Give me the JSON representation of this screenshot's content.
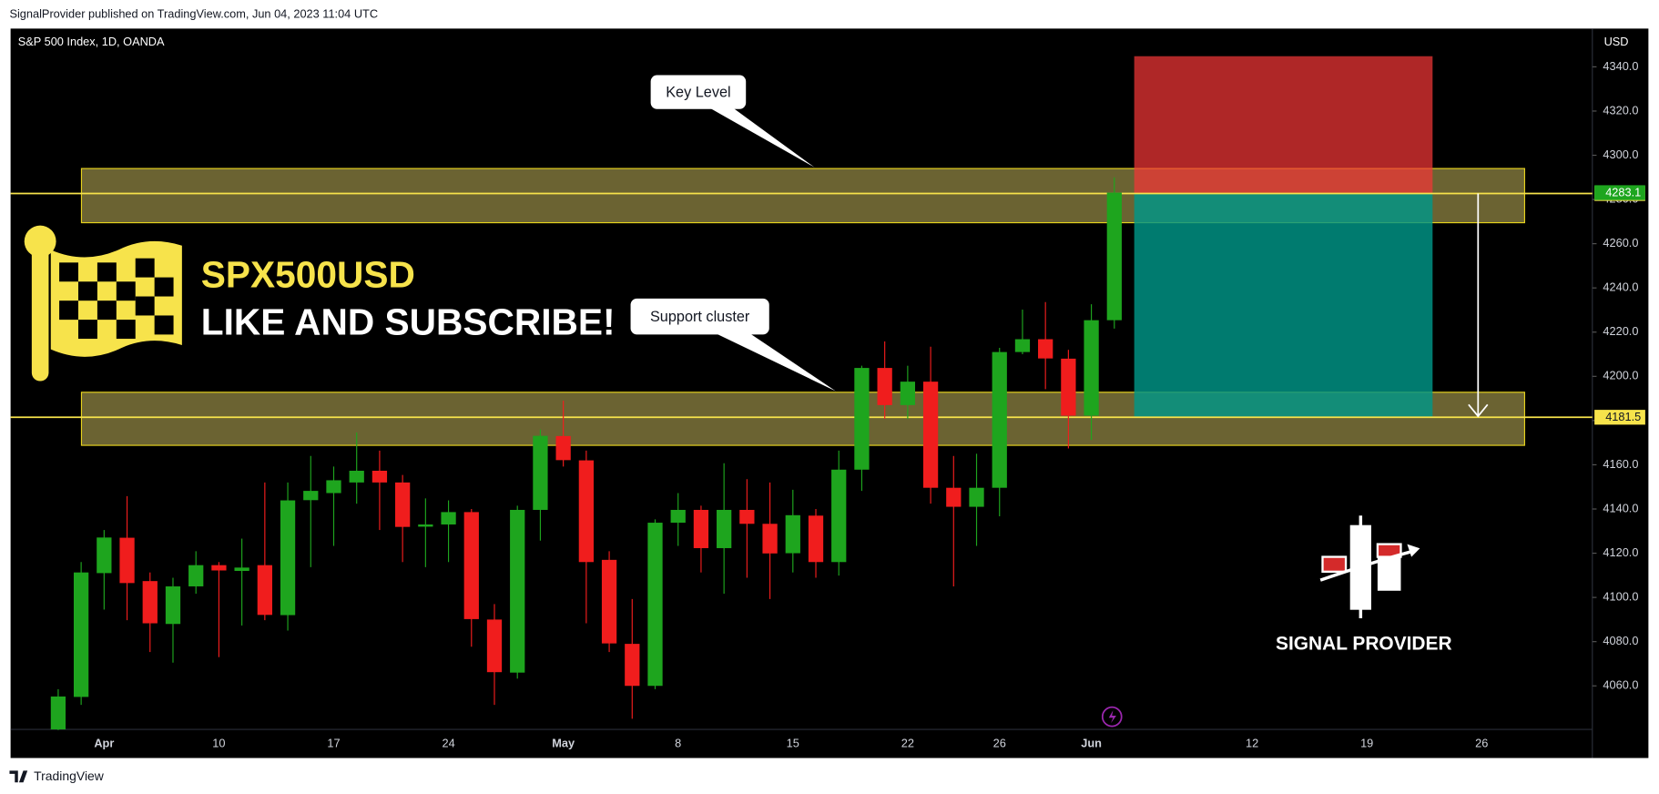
{
  "header": {
    "text": "SignalProvider published on TradingView.com, Jun 04, 2023 11:04 UTC"
  },
  "footer": {
    "text": "TradingView"
  },
  "banner": {
    "symbol": "SPX500USD",
    "slogan": "LIKE AND SUBSCRIBE!"
  },
  "logo": {
    "text": "SIGNAL PROVIDER"
  },
  "chart_data": {
    "type": "candlestick",
    "title": "S&P 500 Index, 1D, OANDA",
    "y_axis_label": "USD",
    "categories": [
      null,
      null,
      "Apr",
      null,
      null,
      null,
      null,
      "10",
      null,
      null,
      null,
      null,
      "17",
      null,
      null,
      null,
      null,
      "24",
      null,
      null,
      null,
      null,
      "May",
      null,
      null,
      null,
      null,
      "8",
      null,
      null,
      null,
      null,
      "15",
      null,
      null,
      null,
      null,
      "22",
      null,
      null,
      null,
      "26",
      null,
      null,
      null,
      "Jun",
      null,
      null,
      null,
      null,
      null,
      null,
      "12",
      null,
      null,
      null,
      null,
      "19",
      null,
      null,
      null,
      null,
      "26",
      null,
      null,
      null,
      null
    ],
    "open": [
      4040.3,
      4055,
      4111,
      4127,
      4107.4,
      4088,
      4105,
      4114.6,
      4112,
      4114.6,
      4092,
      4144,
      4147.2,
      4152,
      4157.3,
      4152,
      4132,
      4133,
      4138.6,
      4090,
      4066,
      4139.6,
      4173,
      4162,
      4117,
      4079,
      4060,
      4133.8,
      4139.6,
      4122.3,
      4139.6,
      4133.3,
      4120,
      4137,
      4116,
      4157.8,
      4203.8,
      4187,
      4197.6,
      4149.6,
      4141,
      4149.6,
      4211,
      4216.8,
      4208,
      4182.2,
      4225.4,
      null,
      null,
      null,
      null,
      null,
      null,
      null,
      null,
      null,
      null,
      null,
      null,
      null,
      null,
      null,
      null,
      null,
      null,
      null,
      null
    ],
    "high": [
      4058.5,
      4116,
      4130.5,
      4145.8,
      4111.3,
      4108.9,
      4120.9,
      4116,
      4126.6,
      4152,
      4152,
      4164,
      4159.2,
      4174.6,
      4166.4,
      4155.4,
      4144.8,
      4143.9,
      4140,
      4097,
      4141.5,
      4176,
      4189,
      4166.4,
      4120.9,
      4099.3,
      4135.3,
      4147.2,
      4141.5,
      4160.7,
      4153.5,
      4152,
      4148.7,
      4140,
      4166.4,
      4204.8,
      4215.8,
      4204.8,
      4213.4,
      4164,
      4165,
      4212.9,
      4230.2,
      4233.6,
      4212,
      4232.6,
      4290,
      null,
      null,
      null,
      null,
      null,
      null,
      null,
      null,
      null,
      null,
      null,
      null,
      null,
      null,
      null,
      null,
      null,
      null,
      null,
      null
    ],
    "low": [
      4040,
      4051.4,
      4094.5,
      4089.7,
      4075.3,
      4070.5,
      4101.7,
      4073,
      4087.3,
      4089.7,
      4085,
      4113.7,
      4123.3,
      4142.4,
      4130.5,
      4116,
      4113.7,
      4116,
      4077.7,
      4051.4,
      4063.3,
      4125.7,
      4159.2,
      4088.3,
      4075.3,
      4045.1,
      4058.5,
      4123.3,
      4111.3,
      4101.7,
      4108.9,
      4099.3,
      4111.3,
      4108.9,
      4109.9,
      4148.2,
      4180.8,
      4180.8,
      4142.4,
      4105,
      4123.3,
      4136.7,
      4210,
      4194.2,
      4167.4,
      4171.2,
      4221.6,
      null,
      null,
      null,
      null,
      null,
      null,
      null,
      null,
      null,
      null,
      null,
      null,
      null,
      null,
      null,
      null,
      null,
      null,
      null,
      null
    ],
    "close": [
      4055.2,
      4111.3,
      4127.1,
      4106.5,
      4088.3,
      4105,
      4114.6,
      4112.2,
      4113.5,
      4092.1,
      4143.9,
      4148.2,
      4153,
      4157.3,
      4152,
      4131.9,
      4133,
      4138.6,
      4090.2,
      4066.2,
      4139.6,
      4173.1,
      4162.1,
      4116,
      4079.2,
      4060,
      4133.8,
      4139.6,
      4122.3,
      4139.6,
      4133.3,
      4119.9,
      4137.2,
      4116,
      4157.8,
      4203.8,
      4187,
      4197.6,
      4149.6,
      4141,
      4149.6,
      4211,
      4216.8,
      4208.1,
      4182.2,
      4225.4,
      4283.1,
      null,
      null,
      null,
      null,
      null,
      null,
      null,
      null,
      null,
      null,
      null,
      null,
      null,
      null,
      null,
      null,
      null,
      null,
      null,
      null
    ],
    "up_color": "#1ea51e",
    "down_color": "#f01d1d",
    "ylim": [
      4040.3,
      4357.3
    ],
    "yticks": [
      {
        "value": 4060,
        "label": "4060.0"
      },
      {
        "value": 4080,
        "label": "4080.0"
      },
      {
        "value": 4100,
        "label": "4100.0"
      },
      {
        "value": 4120,
        "label": "4120.0"
      },
      {
        "value": 4140,
        "label": "4140.0"
      },
      {
        "value": 4160,
        "label": "4160.0"
      },
      {
        "value": 4180,
        "label": "4180.0"
      },
      {
        "value": 4200,
        "label": "4200.0"
      },
      {
        "value": 4220,
        "label": "4220.0"
      },
      {
        "value": 4240,
        "label": "4240.0"
      },
      {
        "value": 4260,
        "label": "4260.0"
      },
      {
        "value": 4280,
        "label": "4280.0"
      },
      {
        "value": 4300,
        "label": "4300.0"
      },
      {
        "value": 4320,
        "label": "4320.0"
      },
      {
        "value": 4340,
        "label": "4340.0"
      }
    ],
    "last_price": 4283.1,
    "price_lines": [
      4282.7,
      4181.5
    ],
    "zones": [
      {
        "label": "Key Level",
        "range": [
          4269.5,
          4294
        ]
      },
      {
        "label": "Support cluster",
        "range": [
          4168.8,
          4192.8
        ]
      }
    ],
    "position": {
      "stop": 4344.8,
      "entry": 4282.7,
      "target": 4181.5
    }
  }
}
